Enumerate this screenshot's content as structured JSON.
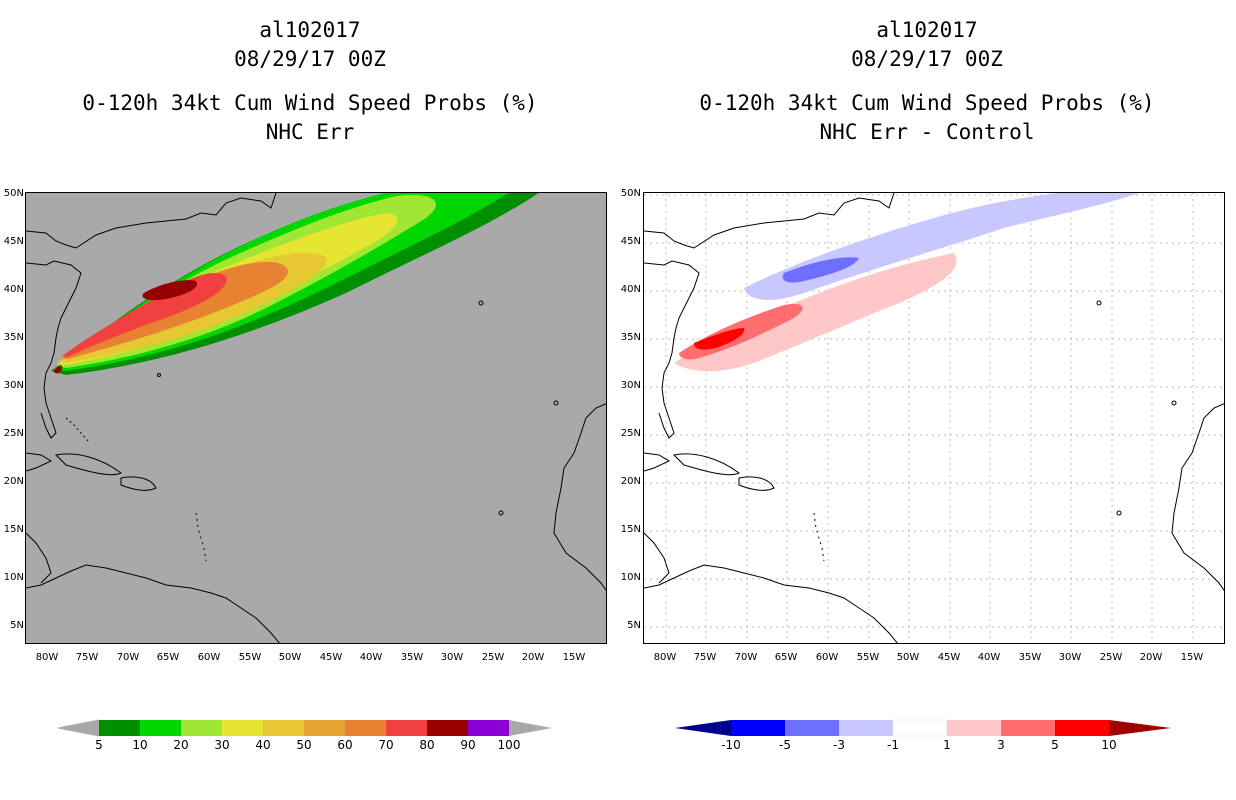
{
  "left_panel": {
    "title_lines": [
      "al102017",
      "08/29/17 00Z",
      "0-120h 34kt Cum Wind Speed Probs (%)",
      "NHC Err"
    ],
    "background_color": "#a9a9a9",
    "colorbar_labels": [
      "5",
      "10",
      "20",
      "30",
      "40",
      "50",
      "60",
      "70",
      "80",
      "90",
      "100"
    ],
    "colorbar_colors": [
      "#008f00",
      "#00d700",
      "#a0e632",
      "#e6e632",
      "#e6c832",
      "#e6a532",
      "#e68232",
      "#f04040",
      "#960000",
      "#8c00d6"
    ]
  },
  "right_panel": {
    "title_lines": [
      "al102017",
      "08/29/17 00Z",
      "0-120h 34kt Cum Wind Speed Probs (%)",
      "NHC Err - Control"
    ],
    "background_color": "#ffffff",
    "colorbar_labels": [
      "-10",
      "-5",
      "-3",
      "-1",
      "1",
      "3",
      "5",
      "10"
    ],
    "colorbar_colors": [
      "#0000c8",
      "#0000ff",
      "#6e6eff",
      "#c8c8ff",
      "#ffffff",
      "#ffc8c8",
      "#ff6e6e",
      "#ff0000",
      "#a00000"
    ]
  },
  "axes": {
    "lat_labels": [
      "50N",
      "45N",
      "40N",
      "35N",
      "30N",
      "25N",
      "20N",
      "15N",
      "10N",
      "5N"
    ],
    "lon_labels": [
      "80W",
      "75W",
      "70W",
      "65W",
      "60W",
      "55W",
      "50W",
      "45W",
      "40W",
      "35W",
      "30W",
      "25W",
      "20W",
      "15W"
    ]
  }
}
